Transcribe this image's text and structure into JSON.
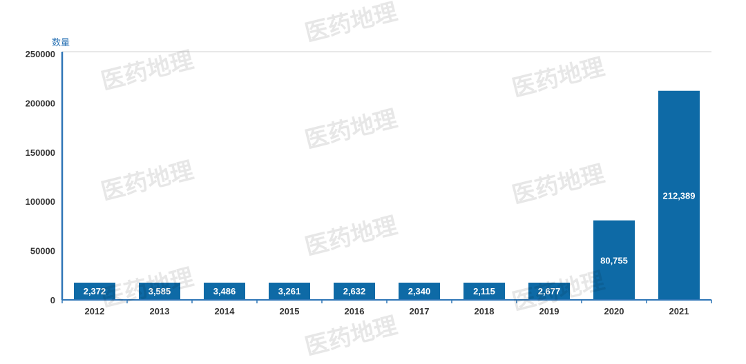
{
  "chart_data": {
    "type": "bar",
    "title": "",
    "ylabel": "数量",
    "xlabel": "",
    "categories": [
      "2012",
      "2013",
      "2014",
      "2015",
      "2016",
      "2017",
      "2018",
      "2019",
      "2020",
      "2021"
    ],
    "values": [
      2372,
      3585,
      3486,
      3261,
      2632,
      2340,
      2115,
      2677,
      80755,
      212389
    ],
    "data_labels": [
      "2,372",
      "3,585",
      "3,486",
      "3,261",
      "2,632",
      "2,340",
      "2,115",
      "2,677",
      "80,755",
      "212,389"
    ],
    "ylim": [
      0,
      250000
    ],
    "yticks": [
      "0",
      "50000",
      "100000",
      "150000",
      "200000",
      "250000"
    ],
    "grid": false,
    "bar_color": "#0e6aa6",
    "axis_color": "#2e75b6"
  },
  "watermark": "医药地理"
}
